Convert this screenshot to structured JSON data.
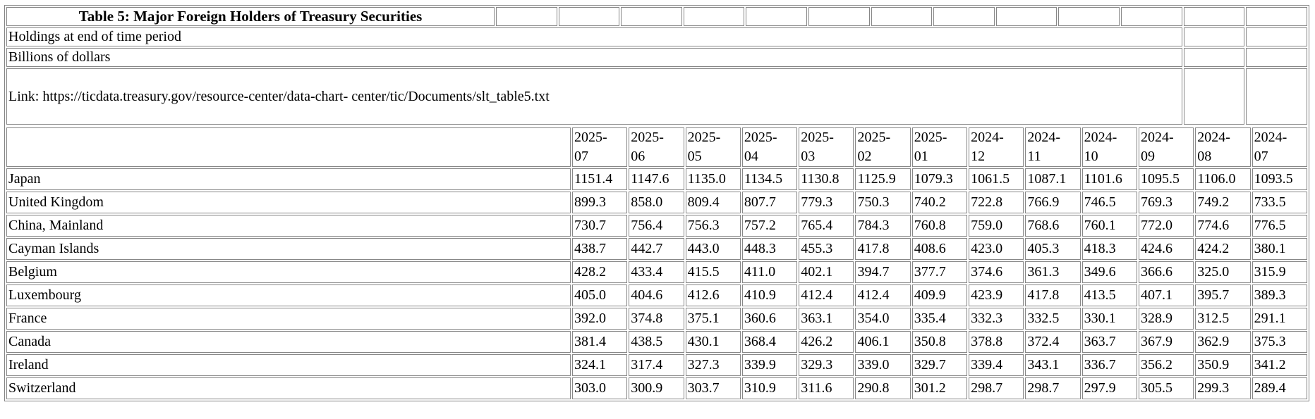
{
  "table": {
    "title": "Table 5: Major Foreign Holders of Treasury Securities",
    "notes": [
      "Holdings at end of time period",
      "Billions of dollars"
    ],
    "link_text": "Link: https://ticdata.treasury.gov/resource-center/data-chart-\ncenter/tic/Documents/slt_table5.txt",
    "title_row_empty_cells": 13,
    "note_row_empty_cells": 2,
    "border_color": "#878787",
    "columns": [
      "2025-07",
      "2025-06",
      "2025-05",
      "2025-04",
      "2025-03",
      "2025-02",
      "2025-01",
      "2024-12",
      "2024-11",
      "2024-10",
      "2024-09",
      "2024-08",
      "2024-07"
    ],
    "rows": [
      {
        "label": "Japan",
        "values": [
          "1151.4",
          "1147.6",
          "1135.0",
          "1134.5",
          "1130.8",
          "1125.9",
          "1079.3",
          "1061.5",
          "1087.1",
          "1101.6",
          "1095.5",
          "1106.0",
          "1093.5"
        ]
      },
      {
        "label": "United Kingdom",
        "values": [
          "899.3",
          "858.0",
          "809.4",
          "807.7",
          "779.3",
          "750.3",
          "740.2",
          "722.8",
          "766.9",
          "746.5",
          "769.3",
          "749.2",
          "733.5"
        ]
      },
      {
        "label": "China, Mainland",
        "values": [
          "730.7",
          "756.4",
          "756.3",
          "757.2",
          "765.4",
          "784.3",
          "760.8",
          "759.0",
          "768.6",
          "760.1",
          "772.0",
          "774.6",
          "776.5"
        ]
      },
      {
        "label": "Cayman Islands",
        "values": [
          "438.7",
          "442.7",
          "443.0",
          "448.3",
          "455.3",
          "417.8",
          "408.6",
          "423.0",
          "405.3",
          "418.3",
          "424.6",
          "424.2",
          "380.1"
        ]
      },
      {
        "label": "Belgium",
        "values": [
          "428.2",
          "433.4",
          "415.5",
          "411.0",
          "402.1",
          "394.7",
          "377.7",
          "374.6",
          "361.3",
          "349.6",
          "366.6",
          "325.0",
          "315.9"
        ]
      },
      {
        "label": "Luxembourg",
        "values": [
          "405.0",
          "404.6",
          "412.6",
          "410.9",
          "412.4",
          "412.4",
          "409.9",
          "423.9",
          "417.8",
          "413.5",
          "407.1",
          "395.7",
          "389.3"
        ]
      },
      {
        "label": "France",
        "values": [
          "392.0",
          "374.8",
          "375.1",
          "360.6",
          "363.1",
          "354.0",
          "335.4",
          "332.3",
          "332.5",
          "330.1",
          "328.9",
          "312.5",
          "291.1"
        ]
      },
      {
        "label": "Canada",
        "values": [
          "381.4",
          "438.5",
          "430.1",
          "368.4",
          "426.2",
          "406.1",
          "350.8",
          "378.8",
          "372.4",
          "363.7",
          "367.9",
          "362.9",
          "375.3"
        ]
      },
      {
        "label": "Ireland",
        "values": [
          "324.1",
          "317.4",
          "327.3",
          "339.9",
          "329.3",
          "339.0",
          "329.7",
          "339.4",
          "343.1",
          "336.7",
          "356.2",
          "350.9",
          "341.2"
        ]
      },
      {
        "label": "Switzerland",
        "values": [
          "303.0",
          "300.9",
          "303.7",
          "310.9",
          "311.6",
          "290.8",
          "301.2",
          "298.7",
          "298.7",
          "297.9",
          "305.5",
          "299.3",
          "289.4"
        ]
      }
    ]
  }
}
